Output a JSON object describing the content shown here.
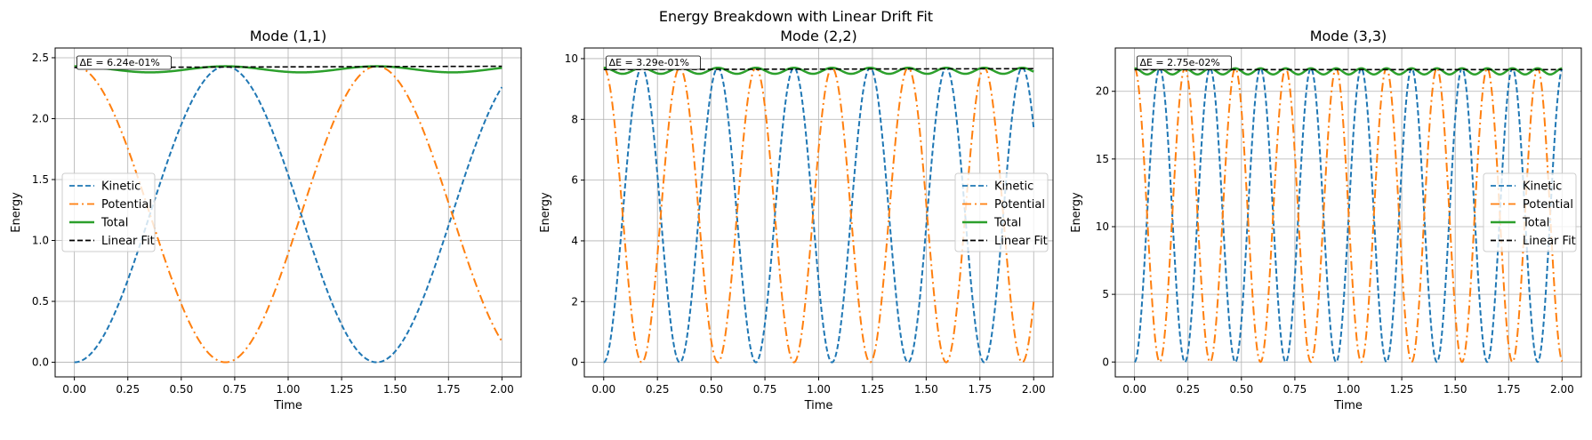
{
  "figure": {
    "suptitle": "Energy Breakdown with Linear Drift Fit"
  },
  "chart_data": [
    {
      "type": "line",
      "title": "Mode (1,1)",
      "xlabel": "Time",
      "ylabel": "Energy",
      "xlim": [
        -0.09,
        2.09
      ],
      "ylim": [
        -0.12,
        2.58
      ],
      "xticks": [
        0.0,
        0.25,
        0.5,
        0.75,
        1.0,
        1.25,
        1.5,
        1.75,
        2.0
      ],
      "xtick_labels": [
        "0.00",
        "0.25",
        "0.50",
        "0.75",
        "1.00",
        "1.25",
        "1.50",
        "1.75",
        "2.00"
      ],
      "yticks": [
        0.0,
        0.5,
        1.0,
        1.5,
        2.0,
        2.5
      ],
      "ytick_labels": [
        "0.0",
        "0.5",
        "1.0",
        "1.5",
        "2.0",
        "2.5"
      ],
      "grid": true,
      "legend_position": "center-left",
      "annotation": "ΔE = 6.24e-01%",
      "energy_peak": 2.43,
      "kinetic_period": 1.414,
      "total_wobble": 0.05,
      "linear_fit": [
        2.42,
        2.43
      ],
      "series": [
        {
          "name": "Kinetic",
          "color": "#1f77b4",
          "style": "dashed"
        },
        {
          "name": "Potential",
          "color": "#ff7f0e",
          "style": "dashdot"
        },
        {
          "name": "Total",
          "color": "#2ca02c",
          "style": "solid"
        },
        {
          "name": "Linear Fit",
          "color": "#000000",
          "style": "dashed"
        }
      ]
    },
    {
      "type": "line",
      "title": "Mode (2,2)",
      "xlabel": "Time",
      "ylabel": "Energy",
      "xlim": [
        -0.09,
        2.09
      ],
      "ylim": [
        -0.48,
        10.35
      ],
      "xticks": [
        0.0,
        0.25,
        0.5,
        0.75,
        1.0,
        1.25,
        1.5,
        1.75,
        2.0
      ],
      "xtick_labels": [
        "0.00",
        "0.25",
        "0.50",
        "0.75",
        "1.00",
        "1.25",
        "1.50",
        "1.75",
        "2.00"
      ],
      "yticks": [
        0,
        2,
        4,
        6,
        8,
        10
      ],
      "ytick_labels": [
        "0",
        "2",
        "4",
        "6",
        "8",
        "10"
      ],
      "grid": true,
      "legend_position": "center-right",
      "annotation": "ΔE = 3.29e-01%",
      "energy_peak": 9.7,
      "kinetic_period": 0.354,
      "total_wobble": 0.2,
      "linear_fit": [
        9.64,
        9.67
      ],
      "series": [
        {
          "name": "Kinetic",
          "color": "#1f77b4",
          "style": "dashed"
        },
        {
          "name": "Potential",
          "color": "#ff7f0e",
          "style": "dashdot"
        },
        {
          "name": "Total",
          "color": "#2ca02c",
          "style": "solid"
        },
        {
          "name": "Linear Fit",
          "color": "#000000",
          "style": "dashed"
        }
      ]
    },
    {
      "type": "line",
      "title": "Mode (3,3)",
      "xlabel": "Time",
      "ylabel": "Energy",
      "xlim": [
        -0.09,
        2.09
      ],
      "ylim": [
        -1.1,
        23.2
      ],
      "xticks": [
        0.0,
        0.25,
        0.5,
        0.75,
        1.0,
        1.25,
        1.5,
        1.75,
        2.0
      ],
      "xtick_labels": [
        "0.00",
        "0.25",
        "0.50",
        "0.75",
        "1.00",
        "1.25",
        "1.50",
        "1.75",
        "2.00"
      ],
      "yticks": [
        0,
        5,
        10,
        15,
        20
      ],
      "ytick_labels": [
        "0",
        "5",
        "10",
        "15",
        "20"
      ],
      "grid": true,
      "legend_position": "center-right",
      "annotation": "ΔE = 2.75e-02%",
      "energy_peak": 21.7,
      "kinetic_period": 0.2357,
      "total_wobble": 0.45,
      "linear_fit": [
        21.6,
        21.6
      ],
      "series": [
        {
          "name": "Kinetic",
          "color": "#1f77b4",
          "style": "dashed"
        },
        {
          "name": "Potential",
          "color": "#ff7f0e",
          "style": "dashdot"
        },
        {
          "name": "Total",
          "color": "#2ca02c",
          "style": "solid"
        },
        {
          "name": "Linear Fit",
          "color": "#000000",
          "style": "dashed"
        }
      ]
    }
  ]
}
